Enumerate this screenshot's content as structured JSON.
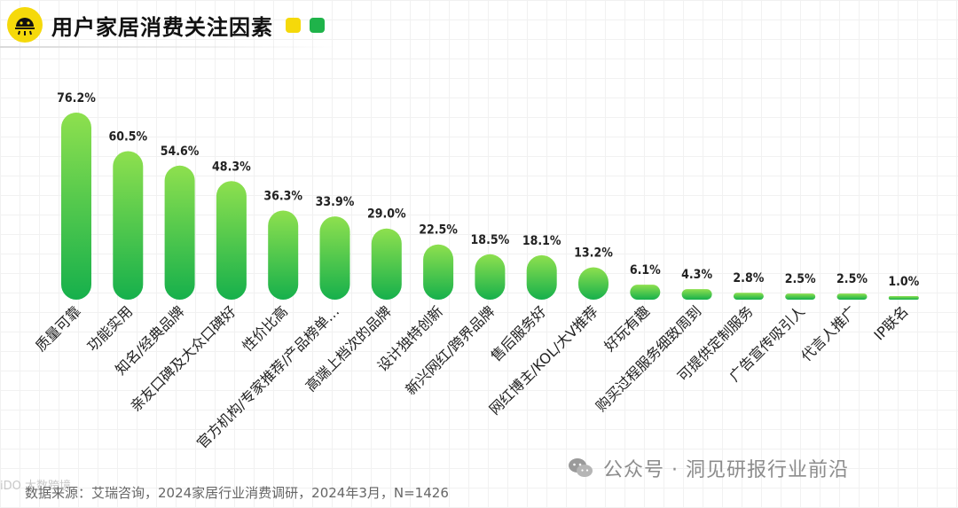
{
  "header": {
    "title": "用户家居消费关注因素",
    "accent_yellow": "#f5d90a",
    "accent_green": "#1fb34a"
  },
  "chart_data": {
    "type": "bar",
    "title": "用户家居消费关注因素",
    "xlabel": "",
    "ylabel": "",
    "ylim": [
      0,
      80
    ],
    "grid": false,
    "categories": [
      "质量可靠",
      "功能实用",
      "知名/经典品牌",
      "亲友口碑及大众口碑好",
      "性价比高",
      "官方机构/专家推荐/产品榜单…",
      "高端上档次的品牌",
      "设计独特创新",
      "新兴网红/跨界品牌",
      "售后服务好",
      "网红博主/KOL/大V推荐",
      "好玩有趣",
      "购买过程服务细致周到",
      "可提供定制服务",
      "广告宣传吸引人",
      "代言人推广",
      "IP联名"
    ],
    "values": [
      76.2,
      60.5,
      54.6,
      48.3,
      36.3,
      33.9,
      29.0,
      22.5,
      18.5,
      18.1,
      13.2,
      6.1,
      4.3,
      2.8,
      2.5,
      2.5,
      1.0
    ],
    "value_labels": [
      "76.2%",
      "60.5%",
      "54.6%",
      "48.3%",
      "36.3%",
      "33.9%",
      "29.0%",
      "22.5%",
      "18.5%",
      "18.1%",
      "13.2%",
      "6.1%",
      "4.3%",
      "2.8%",
      "2.5%",
      "2.5%",
      "1.0%"
    ],
    "bar_color_top": "#8ee04e",
    "bar_color_bottom": "#16b04c"
  },
  "footer": {
    "source": "数据来源：艾瑞咨询，2024家居行业消费调研，2024年3月，N=1426",
    "watermark": "公众号 · 洞见研报行业前沿",
    "corner_mark": "iDO 大数跨境"
  },
  "icons": {
    "logo": "sun-face-icon",
    "watermark": "wechat-icon"
  }
}
